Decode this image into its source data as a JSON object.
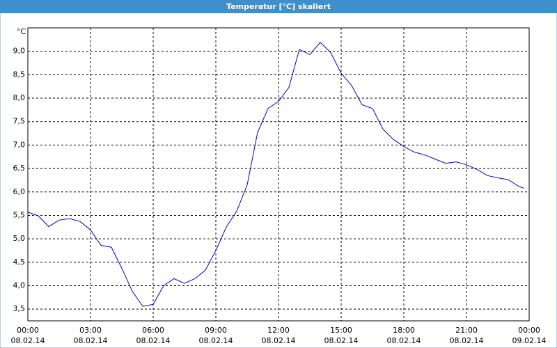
{
  "chart_data": {
    "type": "line",
    "title": "Temperatur [°C] skaliert",
    "y_unit": "°C",
    "x": [
      0,
      0.5,
      1,
      1.5,
      2,
      2.5,
      3,
      3.5,
      4,
      4.5,
      5,
      5.5,
      6,
      6.5,
      7,
      7.5,
      8,
      8.5,
      9,
      9.5,
      10,
      10.5,
      11,
      11.5,
      12,
      12.5,
      13,
      13.5,
      14,
      14.5,
      15,
      15.5,
      16,
      16.5,
      17,
      17.5,
      18,
      18.5,
      19,
      19.5,
      20,
      20.5,
      21,
      21.5,
      22,
      22.5,
      23,
      23.5,
      23.75
    ],
    "series": [
      {
        "name": "Temperatur",
        "color": "#0000c8",
        "values": [
          5.57,
          5.49,
          5.26,
          5.4,
          5.43,
          5.37,
          5.19,
          4.86,
          4.82,
          4.37,
          3.88,
          3.56,
          3.6,
          4.0,
          4.15,
          4.05,
          4.15,
          4.33,
          4.75,
          5.25,
          5.59,
          6.15,
          7.27,
          7.78,
          7.93,
          8.23,
          9.04,
          8.93,
          9.19,
          8.97,
          8.53,
          8.27,
          7.86,
          7.78,
          7.34,
          7.12,
          6.97,
          6.85,
          6.79,
          6.7,
          6.61,
          6.64,
          6.58,
          6.48,
          6.35,
          6.3,
          6.26,
          6.12,
          6.08
        ]
      }
    ],
    "xlim": [
      0,
      24
    ],
    "xticks": [
      {
        "value": 0,
        "label": "00:00"
      },
      {
        "value": 3,
        "label": "03:00"
      },
      {
        "value": 6,
        "label": "06:00"
      },
      {
        "value": 9,
        "label": "09:00"
      },
      {
        "value": 12,
        "label": "12:00"
      },
      {
        "value": 15,
        "label": "15:00"
      },
      {
        "value": 18,
        "label": "18:00"
      },
      {
        "value": 21,
        "label": "21:00"
      },
      {
        "value": 24,
        "label": "00:00"
      }
    ],
    "xtick_dates": [
      "08.02.14",
      "08.02.14",
      "08.02.14",
      "08.02.14",
      "08.02.14",
      "08.02.14",
      "08.02.14",
      "08.02.14",
      "09.02.14"
    ],
    "ylim": [
      3.25,
      9.5
    ],
    "yticks": [
      {
        "value": 3.5,
        "label": "3,5"
      },
      {
        "value": 4,
        "label": "4,0"
      },
      {
        "value": 4.5,
        "label": "4,5"
      },
      {
        "value": 5,
        "label": "5,0"
      },
      {
        "value": 5.5,
        "label": "5,5"
      },
      {
        "value": 6,
        "label": "6,0"
      },
      {
        "value": 6.5,
        "label": "6,5"
      },
      {
        "value": 7,
        "label": "7,0"
      },
      {
        "value": 7.5,
        "label": "7,5"
      },
      {
        "value": 8,
        "label": "8,0"
      },
      {
        "value": 8.5,
        "label": "8,5"
      },
      {
        "value": 9,
        "label": "9,0"
      }
    ],
    "grid": true
  }
}
